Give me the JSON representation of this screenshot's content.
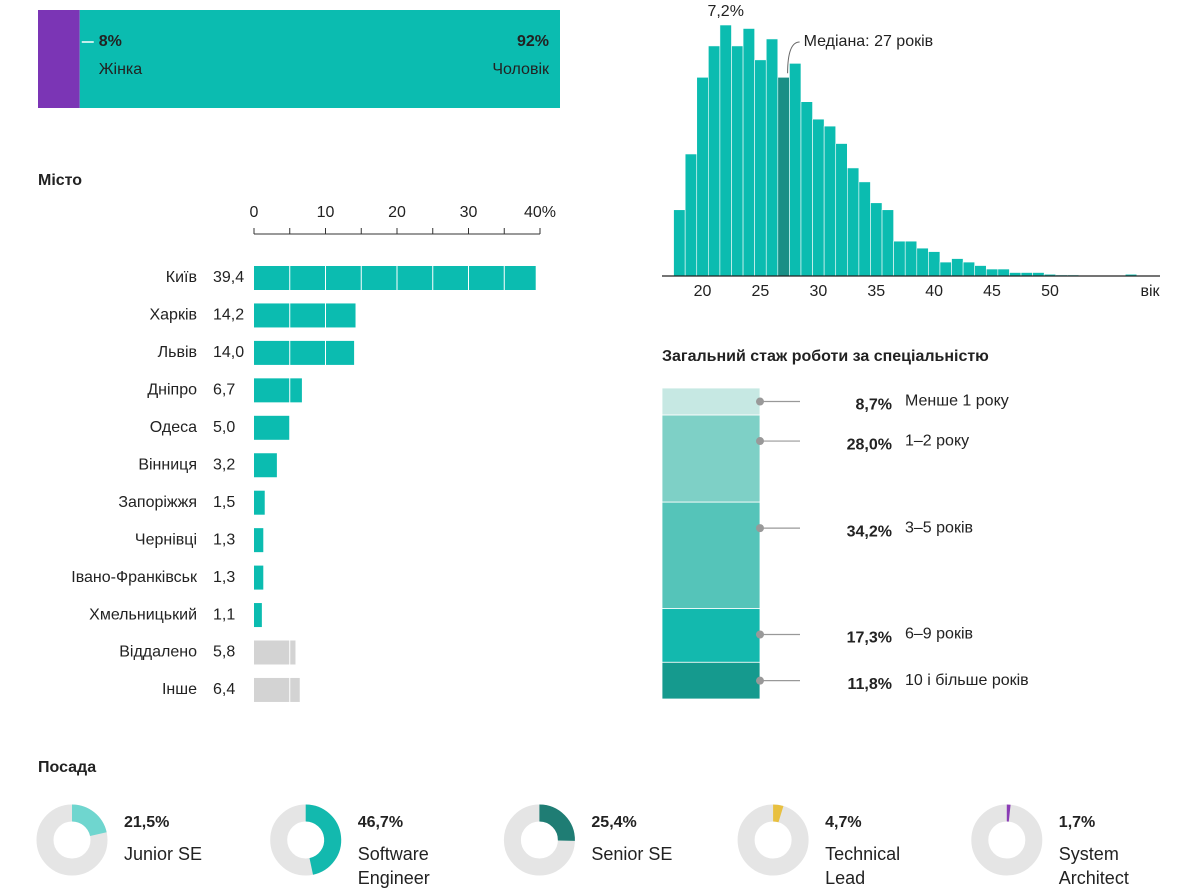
{
  "chart_data": [
    {
      "type": "stacked-bar",
      "categories": [
        "Жінка",
        "Чоловік"
      ],
      "values": [
        8,
        92
      ],
      "value_labels": [
        "8%",
        "92%"
      ],
      "colors": [
        "#7b35b5",
        "#0bbcb0"
      ]
    },
    {
      "type": "histogram",
      "bins": [
        17.5,
        18.5,
        19.5,
        20.5,
        21.5,
        22.5,
        23.5,
        24.5,
        25.5,
        26.5,
        27.5,
        28.5,
        29.5,
        30.5,
        31.5,
        32.5,
        33.5,
        34.5,
        35.5,
        36.5,
        37.5,
        38.5,
        39.5,
        40.5,
        41.5,
        42.5,
        43.5,
        44.5,
        45.5,
        46.5,
        47.5,
        48.5,
        49.5,
        50.5,
        51.5,
        52.5,
        53.5,
        54.5,
        55.5,
        56.5,
        57.5,
        58.5,
        59.5
      ],
      "values": [
        1.9,
        3.5,
        5.7,
        6.6,
        7.2,
        6.6,
        7.1,
        6.2,
        6.8,
        5.7,
        6.1,
        5.0,
        4.5,
        4.3,
        3.8,
        3.1,
        2.7,
        2.1,
        1.9,
        1.0,
        1.0,
        0.8,
        0.7,
        0.4,
        0.5,
        0.4,
        0.3,
        0.2,
        0.2,
        0.1,
        0.1,
        0.1,
        0.05,
        0.03,
        0.03,
        0.02,
        0.02,
        0.02,
        0.02,
        0.05,
        0.02,
        0.01
      ],
      "xlim": [
        16.5,
        59.5
      ],
      "ylim": [
        0,
        7.2
      ],
      "xticks": [
        20,
        25,
        30,
        35,
        40,
        45,
        50
      ],
      "x_label": "вік",
      "color": "#0bbcb0",
      "highlight_color": "#1a8f86",
      "annotations": [
        {
          "text": "7,2%",
          "x": 22,
          "y": 7.2
        },
        {
          "text": "Медіана: 27 років",
          "x": 27
        }
      ]
    },
    {
      "type": "bar",
      "title": "Місто",
      "categories": [
        "Київ",
        "Харків",
        "Львів",
        "Дніпро",
        "Одеса",
        "Вінниця",
        "Запоріжжя",
        "Чернівці",
        "Івано-Франківськ",
        "Хмельницький",
        "Віддалено",
        "Інше"
      ],
      "values": [
        39.4,
        14.2,
        14.0,
        6.7,
        5.0,
        3.2,
        1.5,
        1.3,
        1.3,
        1.1,
        5.8,
        6.4
      ],
      "value_labels": [
        "39,4",
        "14,2",
        "14,0",
        "6,7",
        "5,0",
        "3,2",
        "1,5",
        "1,3",
        "1,3",
        "1,1",
        "5,8",
        "6,4"
      ],
      "colors": [
        "#0bbcb0",
        "#0bbcb0",
        "#0bbcb0",
        "#0bbcb0",
        "#0bbcb0",
        "#0bbcb0",
        "#0bbcb0",
        "#0bbcb0",
        "#0bbcb0",
        "#0bbcb0",
        "#d3d3d3",
        "#d3d3d3"
      ],
      "xlim": [
        0,
        40
      ],
      "xticks": [
        0,
        10,
        20,
        30,
        {
          "value": 40,
          "label": "40%"
        }
      ],
      "minor_xticks": [
        5,
        15,
        25,
        35
      ]
    },
    {
      "type": "stacked-column",
      "title": "Загальний стаж роботи за спеціальністю",
      "categories": [
        "Менше 1 року",
        "1–2 року",
        "3–5 років",
        "6–9 років",
        "10 і більше років"
      ],
      "values": [
        8.7,
        28.0,
        34.2,
        17.3,
        11.8
      ],
      "value_labels": [
        "8,7%",
        "28,0%",
        "34,2%",
        "17,3%",
        "11,8%"
      ],
      "colors": [
        "#c6e8e3",
        "#7ed0c6",
        "#55c4b9",
        "#13b9ae",
        "#159a8e"
      ]
    },
    {
      "type": "donut",
      "title": "Посада",
      "categories": [
        "Junior SE",
        "Software Engineer",
        "Senior SE",
        "Technical Lead",
        "System Architect"
      ],
      "values": [
        21.5,
        46.7,
        25.4,
        4.7,
        1.7
      ],
      "value_labels": [
        "21,5%",
        "46,7%",
        "25,4%",
        "4,7%",
        "1,7%"
      ],
      "colors": [
        "#6fd6cf",
        "#13b9ae",
        "#1f7d74",
        "#e8c040",
        "#8a3cb5"
      ]
    }
  ]
}
